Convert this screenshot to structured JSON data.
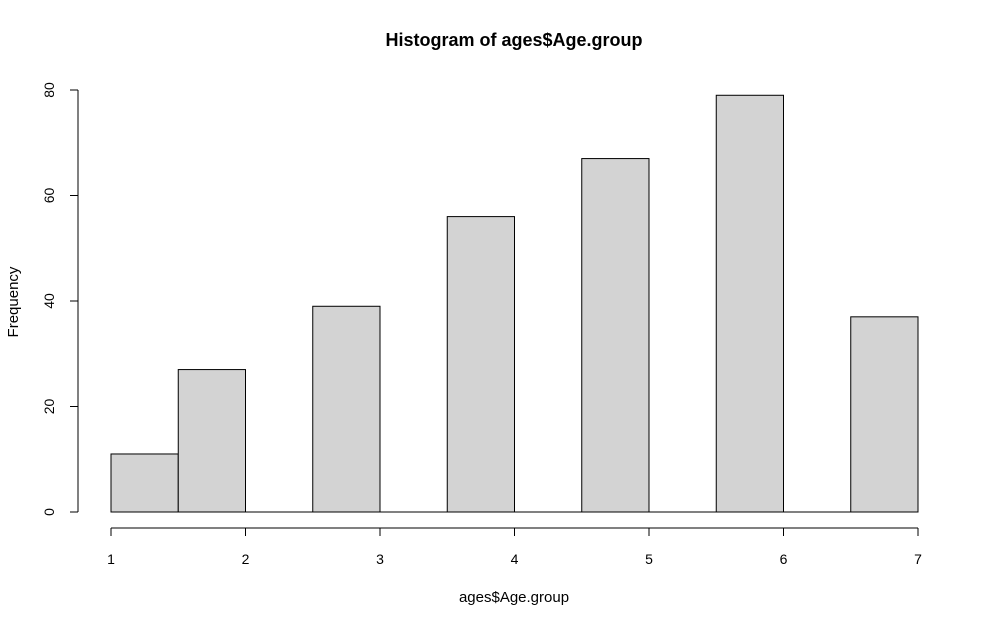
{
  "chart_data": {
    "type": "bar",
    "title": "Histogram of ages$Age.group",
    "xlabel": "ages$Age.group",
    "ylabel": "Frequency",
    "xlim": [
      1,
      7
    ],
    "ylim": [
      0,
      80
    ],
    "x_ticks": [
      1,
      2,
      3,
      4,
      5,
      6,
      7
    ],
    "y_ticks": [
      0,
      20,
      40,
      60,
      80
    ],
    "bins": [
      {
        "from": 1.0,
        "to": 1.5,
        "count": 11
      },
      {
        "from": 1.5,
        "to": 2.0,
        "count": 27
      },
      {
        "from": 2.0,
        "to": 2.5,
        "count": 0
      },
      {
        "from": 2.5,
        "to": 3.0,
        "count": 39
      },
      {
        "from": 3.0,
        "to": 3.5,
        "count": 0
      },
      {
        "from": 3.5,
        "to": 4.0,
        "count": 56
      },
      {
        "from": 4.0,
        "to": 4.5,
        "count": 0
      },
      {
        "from": 4.5,
        "to": 5.0,
        "count": 67
      },
      {
        "from": 5.0,
        "to": 5.5,
        "count": 0
      },
      {
        "from": 5.5,
        "to": 6.0,
        "count": 79
      },
      {
        "from": 6.0,
        "to": 6.5,
        "count": 0
      },
      {
        "from": 6.5,
        "to": 7.0,
        "count": 37
      }
    ],
    "bar_fill": "#d3d3d3",
    "grid": false
  }
}
